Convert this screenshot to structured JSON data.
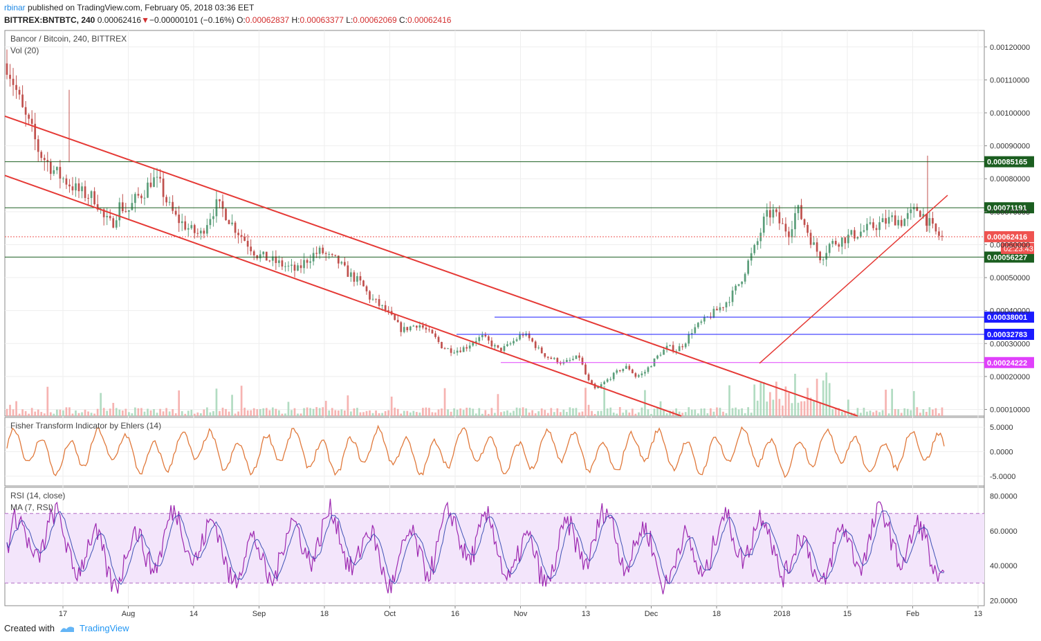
{
  "header": {
    "user": "rbinar",
    "published": "published on TradingView.com, February 05, 2018 03:36 EET",
    "symbol": "BITTREX:BNTBTC, 240",
    "last": "0.00062416",
    "change_arrow": "▼",
    "change": "−0.00000101 (−0.16%)",
    "o_label": "O:",
    "o": "0.00062837",
    "h_label": "H:",
    "h": "0.00063377",
    "l_label": "L:",
    "l": "0.00062069",
    "c_label": "C:",
    "c": "0.00062416"
  },
  "footer": {
    "created": "Created with",
    "brand": "TradingView"
  },
  "colors": {
    "up": "#5b9e7a",
    "down": "#c0504d",
    "channel": "#e53935",
    "hline_dark": "#1b5e20",
    "hline_blue": "#1a1aff",
    "hline_magenta": "#e040fb",
    "fisher": "#e0783a",
    "rsi": "#9c27b0",
    "rsi_ma": "#3f51b5",
    "rsi_band": "#f3e5fb"
  },
  "chart_data": [
    {
      "type": "line",
      "title": "Bancor / Bitcoin, 240, BITTREX",
      "subtitle": "Vol (20)",
      "x_labels": [
        "17",
        "Aug",
        "14",
        "Sep",
        "18",
        "Oct",
        "16",
        "Nov",
        "13",
        "Dec",
        "18",
        "2018",
        "15",
        "Feb",
        "13"
      ],
      "y_ticks": [
        "0.00120000",
        "0.00110000",
        "0.00100000",
        "0.00090000",
        "0.00080000",
        "0.00070000",
        "0.00060000",
        "0.00050000",
        "0.00040000",
        "0.00030000",
        "0.00020000",
        "0.00010000"
      ],
      "ylim": [
        8e-05,
        0.00125
      ],
      "series": [
        {
          "values": [
            0.00115,
            0.00108,
            0.001,
            0.00095,
            0.00088,
            0.00085,
            0.00082,
            0.0008,
            0.00078,
            0.00076,
            0.00075,
            0.00074,
            0.00068,
            0.00066,
            0.00072,
            0.0007,
            0.00074,
            0.00076,
            0.0008,
            0.00078,
            0.00072,
            0.00068,
            0.00066,
            0.00064,
            0.00063,
            0.00068,
            0.00072,
            0.0007,
            0.00066,
            0.00063,
            0.0006,
            0.00057,
            0.00056,
            0.00055,
            0.00054,
            0.00053,
            0.00052,
            0.00055,
            0.00057,
            0.00058,
            0.00056,
            0.00055,
            0.00052,
            0.0005,
            0.00048,
            0.00044,
            0.00042,
            0.0004,
            0.00037,
            0.00034,
            0.00035,
            0.00036,
            0.00034,
            0.00032,
            0.00029,
            0.00028,
            0.00028,
            0.00029,
            0.00031,
            0.00032,
            0.0003,
            0.00028,
            0.00029,
            0.00031,
            0.00033,
            0.00031,
            0.00028,
            0.00026,
            0.00025,
            0.00024,
            0.00025,
            0.00026,
            0.00019,
            0.00016,
            0.00018,
            0.0002,
            0.00022,
            0.00023,
            0.0002,
            0.00021,
            0.00024,
            0.00027,
            0.00029,
            0.00028,
            0.0003,
            0.00034,
            0.00036,
            0.00038,
            0.0004,
            0.00042,
            0.00045,
            0.00049,
            0.00055,
            0.0006,
            0.00068,
            0.0007,
            0.00066,
            0.00064,
            0.00071,
            0.00066,
            0.0006,
            0.00056,
            0.0006,
            0.00061,
            0.00062,
            0.00063,
            0.00064,
            0.00065,
            0.00066,
            0.00067,
            0.00068,
            0.00067,
            0.00069,
            0.00071,
            0.00068,
            0.00064,
            0.00062
          ]
        }
      ],
      "price_markers": [
        {
          "value": 0.00085165,
          "label": "0.00085165",
          "color": "#1b5e20"
        },
        {
          "value": 0.00071191,
          "label": "0.00071191",
          "color": "#1b5e20"
        },
        {
          "value": 0.00062416,
          "label": "0.00062416",
          "color": "#ef5350"
        },
        {
          "value": 0.00056227,
          "label": "0.00056227",
          "color": "#1b5e20"
        },
        {
          "value": 0.00038001,
          "label": "0.00038001",
          "color": "#1a1aff"
        },
        {
          "value": 0.00032783,
          "label": "0.00032783",
          "color": "#1a1aff"
        },
        {
          "value": 0.00024222,
          "label": "0.00024222",
          "color": "#e040fb"
        }
      ],
      "countdown": "02:23:43"
    },
    {
      "type": "line",
      "title": "Fisher Transform Indicator by Ehlers (14)",
      "y_ticks": [
        "5.0000",
        "0.0000",
        "-5.0000"
      ],
      "ylim": [
        -7,
        7
      ]
    },
    {
      "type": "line",
      "title": "RSI (14, close)",
      "subtitle": "MA (7, RSI)",
      "y_ticks": [
        "80.0000",
        "60.0000",
        "40.0000",
        "20.0000"
      ],
      "ylim": [
        17,
        85
      ],
      "bands": [
        30,
        70
      ]
    }
  ]
}
